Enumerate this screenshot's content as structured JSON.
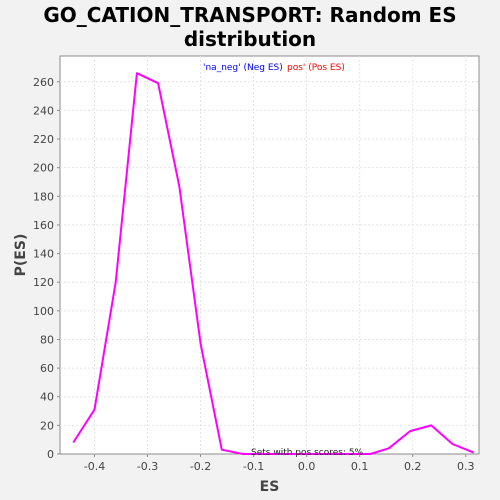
{
  "title_line1": "GO_CATION_TRANSPORT: Random ES",
  "title_line2": "distribution",
  "chart_data": {
    "type": "line",
    "xlabel": "ES",
    "ylabel": "P(ES)",
    "xlim": [
      -0.465,
      0.325
    ],
    "ylim": [
      0,
      278
    ],
    "xticks": [
      -0.4,
      -0.3,
      -0.2,
      -0.1,
      0.0,
      0.1,
      0.2,
      0.3
    ],
    "xtick_labels": [
      "-0.4",
      "-0.3",
      "-0.2",
      "-0.1",
      "0.0",
      "0.1",
      "0.2",
      "0.3"
    ],
    "yticks": [
      0,
      20,
      40,
      60,
      80,
      100,
      120,
      140,
      160,
      180,
      200,
      220,
      240,
      260
    ],
    "ytick_labels": [
      "0",
      "20",
      "40",
      "60",
      "80",
      "100",
      "120",
      "140",
      "160",
      "180",
      "200",
      "220",
      "240",
      "260"
    ],
    "grid": true,
    "series": [
      {
        "color": "#ff00ff",
        "x": [
          -0.44,
          -0.4,
          -0.36,
          -0.32,
          -0.28,
          -0.24,
          -0.2,
          -0.16,
          -0.12,
          -0.08,
          -0.04,
          0.0,
          0.04,
          0.08,
          0.12,
          0.155,
          0.195,
          0.235,
          0.275,
          0.315
        ],
        "y": [
          8,
          31,
          120,
          266,
          259,
          187,
          77,
          3,
          0,
          0,
          0,
          0,
          0,
          0,
          0,
          4,
          16,
          20,
          7,
          1
        ]
      }
    ],
    "legend": [
      {
        "label": "'na_neg' (Neg ES)",
        "color": "#0000ff"
      },
      {
        "label": "pos' (Pos ES)",
        "color": "#ff0000"
      }
    ],
    "annotation": "Sets with pos scores: 5%"
  }
}
